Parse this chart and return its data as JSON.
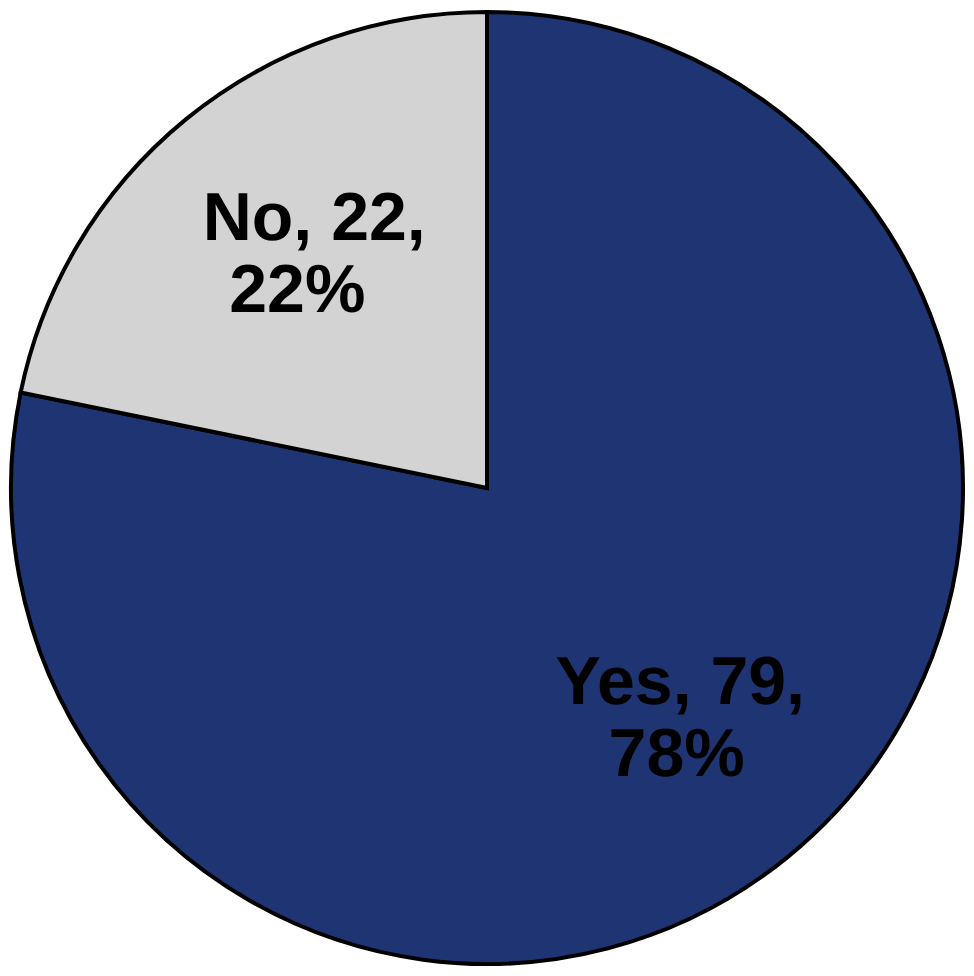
{
  "chart_data": {
    "type": "pie",
    "categories": [
      "Yes",
      "No"
    ],
    "values": [
      79,
      22
    ],
    "colors": [
      "#1f3473",
      "#d3d3d3"
    ],
    "value_labels": [
      ", 79,\n78%",
      ", 22,\n22%"
    ],
    "legend": false
  }
}
